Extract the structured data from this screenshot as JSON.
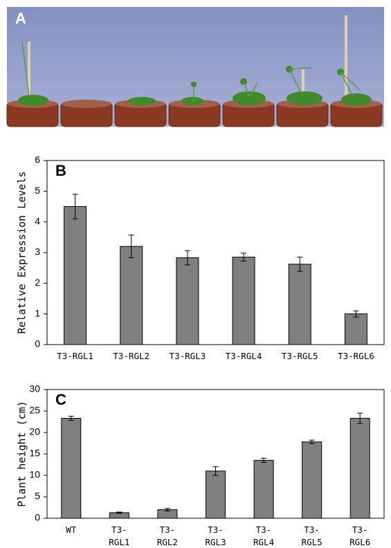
{
  "photo_panel": {
    "label": "A"
  },
  "chart_data": [
    {
      "type": "bar",
      "annotation": "B",
      "ylabel": "Relative Expression Levels",
      "categories": [
        "T3-RGL1",
        "T3-RGL2",
        "T3-RGL3",
        "T3-RGL4",
        "T3-RGL5",
        "T3-RGL6"
      ],
      "values": [
        4.5,
        3.2,
        2.83,
        2.85,
        2.62,
        1.0
      ],
      "errors": [
        0.4,
        0.37,
        0.23,
        0.13,
        0.23,
        0.1
      ],
      "color": "#808080",
      "ylim": [
        0,
        6
      ],
      "yticks": [
        0,
        1,
        2,
        3,
        4,
        5,
        6
      ],
      "grid": false
    },
    {
      "type": "bar",
      "annotation": "C",
      "ylabel": "Plant height (cm)",
      "categories": [
        "WT",
        "T3-\nRGL1",
        "T3-\nRGL2",
        "T3-\nRGL3",
        "T3-\nRGL4",
        "T3-\nRGL5",
        "T3-\nRGL6"
      ],
      "values": [
        23.3,
        1.3,
        2.0,
        11.0,
        13.5,
        17.8,
        23.3
      ],
      "errors": [
        0.5,
        0.15,
        0.3,
        1.0,
        0.5,
        0.4,
        1.2
      ],
      "color": "#808080",
      "ylim": [
        0,
        30
      ],
      "yticks": [
        0,
        5,
        10,
        15,
        20,
        25,
        30
      ],
      "grid": false
    }
  ]
}
